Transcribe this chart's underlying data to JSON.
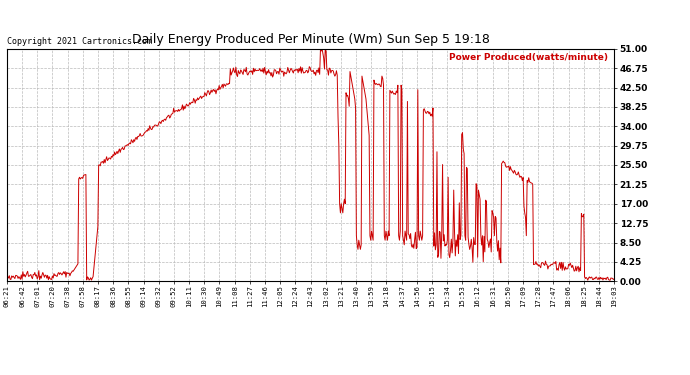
{
  "title": "Daily Energy Produced Per Minute (Wm) Sun Sep 5 19:18",
  "copyright": "Copyright 2021 Cartronics.com",
  "legend_label": "Power Produced(watts/minute)",
  "ylabel_ticks": [
    0.0,
    4.25,
    8.5,
    12.75,
    17.0,
    21.25,
    25.5,
    29.75,
    34.0,
    38.25,
    42.5,
    46.75,
    51.0
  ],
  "ymax": 51.0,
  "ymin": 0.0,
  "background_color": "#ffffff",
  "plot_bg_color": "#ffffff",
  "grid_color": "#bbbbbb",
  "line_color": "#cc0000",
  "title_color": "#000000",
  "copyright_color": "#000000",
  "legend_color": "#cc0000",
  "x_tick_labels": [
    "06:21",
    "06:42",
    "07:01",
    "07:20",
    "07:38",
    "07:58",
    "08:17",
    "08:36",
    "08:55",
    "09:14",
    "09:32",
    "09:52",
    "10:11",
    "10:30",
    "10:49",
    "11:08",
    "11:27",
    "11:46",
    "12:05",
    "12:24",
    "12:43",
    "13:02",
    "13:21",
    "13:40",
    "13:59",
    "14:18",
    "14:37",
    "14:56",
    "15:15",
    "15:34",
    "15:53",
    "16:12",
    "16:31",
    "16:50",
    "17:09",
    "17:28",
    "17:47",
    "18:06",
    "18:25",
    "18:44",
    "19:03"
  ]
}
